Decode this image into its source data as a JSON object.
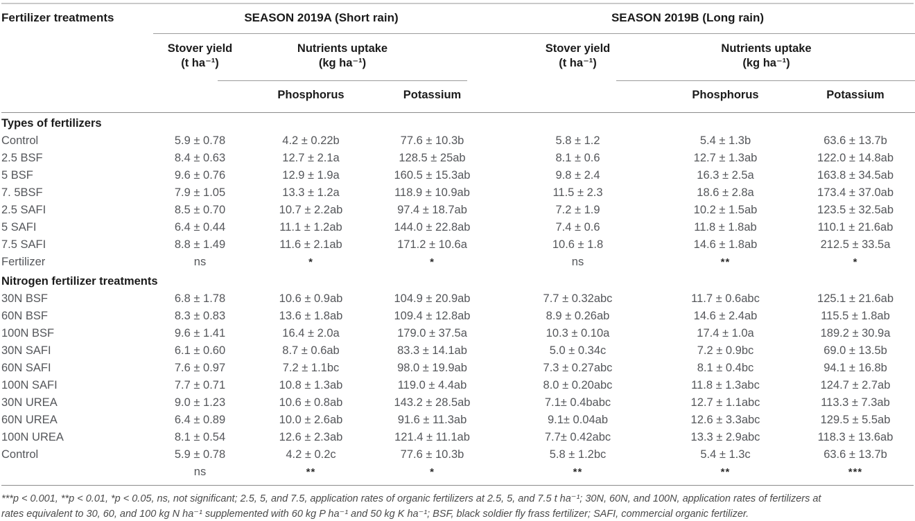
{
  "table": {
    "corner_label": "Fertilizer treatments",
    "header": {
      "seasons": [
        {
          "title": "SEASON 2019A (Short rain)",
          "stover_label": "Stover yield",
          "stover_unit": "(t ha⁻¹)",
          "nutrients_label": "Nutrients uptake",
          "nutrients_unit": "(kg ha⁻¹)",
          "nutrient_cols": [
            "Phosphorus",
            "Potassium"
          ]
        },
        {
          "title": "SEASON 2019B (Long rain)",
          "stover_label": "Stover yield",
          "stover_unit": "(t ha⁻¹)",
          "nutrients_label": "Nutrients uptake",
          "nutrients_unit": "(kg ha⁻¹)",
          "nutrient_cols": [
            "Phosphorus",
            "Potassium"
          ]
        }
      ]
    },
    "sections": [
      {
        "title": "Types of fertilizers",
        "rows": [
          {
            "label": "Control",
            "cells": [
              "5.9 ± 0.78",
              "4.2 ± 0.22b",
              "77.6 ± 10.3b",
              "5.8 ± 1.2",
              "5.4 ± 1.3b",
              "63.6 ± 13.7b"
            ]
          },
          {
            "label": "2.5 BSF",
            "cells": [
              "8.4 ± 0.63",
              "12.7 ± 2.1a",
              "128.5 ± 25ab",
              "8.1 ± 0.6",
              "12.7 ± 1.3ab",
              "122.0 ± 14.8ab"
            ]
          },
          {
            "label": "5 BSF",
            "cells": [
              "9.6 ± 0.76",
              "12.9 ± 1.9a",
              "160.5 ± 15.3ab",
              "9.8 ± 2.4",
              "16.3 ± 2.5a",
              "163.8 ± 34.5ab"
            ]
          },
          {
            "label": "7. 5BSF",
            "cells": [
              "7.9 ± 1.05",
              "13.3 ± 1.2a",
              "118.9 ± 10.9ab",
              "11.5 ± 2.3",
              "18.6 ± 2.8a",
              "173.4 ± 37.0ab"
            ]
          },
          {
            "label": "2.5 SAFI",
            "cells": [
              "8.5 ± 0.70",
              "10.7 ± 2.2ab",
              "97.4 ± 18.7ab",
              "7.2 ± 1.9",
              "10.2 ± 1.5ab",
              "123.5 ± 32.5ab"
            ]
          },
          {
            "label": "5 SAFI",
            "cells": [
              "6.4 ± 0.44",
              "11.1 ± 1.2ab",
              "144.0 ± 22.8ab",
              "7.4 ± 0.6",
              "11.8 ± 1.8ab",
              "110.1 ± 21.6ab"
            ]
          },
          {
            "label": "7.5 SAFI",
            "cells": [
              "8.8 ± 1.49",
              "11.6 ± 2.1ab",
              "171.2 ± 10.6a",
              "10.6 ± 1.8",
              "14.6 ± 1.8ab",
              "212.5 ± 33.5a"
            ]
          },
          {
            "label": "Fertilizer",
            "cells": [
              "ns",
              "*",
              "*",
              "ns",
              "**",
              "*"
            ]
          }
        ]
      },
      {
        "title": "Nitrogen fertilizer treatments",
        "rows": [
          {
            "label": "30N BSF",
            "cells": [
              "6.8 ± 1.78",
              "10.6 ± 0.9ab",
              "104.9 ± 20.9ab",
              "7.7 ± 0.32abc",
              "11.7 ± 0.6abc",
              "125.1 ± 21.6ab"
            ]
          },
          {
            "label": "60N BSF",
            "cells": [
              "8.3 ± 0.83",
              "13.6 ± 1.8ab",
              "109.4 ± 12.8ab",
              "8.9 ± 0.26ab",
              "14.6 ± 2.4ab",
              "115.5 ± 1.8ab"
            ]
          },
          {
            "label": "100N BSF",
            "cells": [
              "9.6 ± 1.41",
              "16.4 ± 2.0a",
              "179.0 ± 37.5a",
              "10.3 ± 0.10a",
              "17.4 ± 1.0a",
              "189.2 ± 30.9a"
            ]
          },
          {
            "label": "30N SAFI",
            "cells": [
              "6.1 ± 0.60",
              "8.7 ± 0.6ab",
              "83.3 ± 14.1ab",
              "5.0 ± 0.34c",
              "7.2 ± 0.9bc",
              "69.0 ± 13.5b"
            ]
          },
          {
            "label": "60N SAFI",
            "cells": [
              "7.6 ± 0.97",
              "7.2 ± 1.1bc",
              "98.0 ± 19.9ab",
              "7.3 ± 0.27abc",
              "8.1 ± 0.4bc",
              "94.1 ± 16.8b"
            ]
          },
          {
            "label": "100N SAFI",
            "cells": [
              "7.7 ± 0.71",
              "10.8 ± 1.3ab",
              "119.0 ± 4.4ab",
              "8.0 ± 0.20abc",
              "11.8 ± 1.3abc",
              "124.7 ± 2.7ab"
            ]
          },
          {
            "label": "30N UREA",
            "cells": [
              "9.0 ± 1.23",
              "10.6 ± 0.8ab",
              "143.2 ± 28.5ab",
              "7.1± 0.4babc",
              "12.7 ± 1.1abc",
              "113.3 ± 7.3ab"
            ]
          },
          {
            "label": "60N UREA",
            "cells": [
              "6.4 ± 0.89",
              "10.0 ± 2.6ab",
              "91.6 ± 11.3ab",
              "9.1± 0.04ab",
              "12.6 ± 3.3abc",
              "129.5 ± 5.5ab"
            ]
          },
          {
            "label": "100N UREA",
            "cells": [
              "8.1 ± 0.54",
              "12.6 ± 2.3ab",
              "121.4 ± 11.1ab",
              "7.7± 0.42abc",
              "13.3 ± 2.9abc",
              "118.3 ± 13.6ab"
            ]
          },
          {
            "label": "Control",
            "cells": [
              "5.9 ± 0.78",
              "4.2 ± 0.2c",
              "77.6 ± 10.3b",
              "5.8 ± 1.2bc",
              "5.4 ± 1.3c",
              "63.6 ± 13.7b"
            ]
          },
          {
            "label": "",
            "cells": [
              "ns",
              "**",
              "*",
              "**",
              "**",
              "***"
            ]
          }
        ]
      }
    ],
    "footnote": {
      "line1": "***p < 0.001, **p < 0.01, *p < 0.05, ns, not significant; 2.5, 5, and 7.5, application rates of organic fertilizers at 2.5, 5, and 7.5 t ha⁻¹; 30N, 60N, and 100N, application rates of fertilizers at",
      "line2": "rates equivalent to 30, 60, and 100 kg N ha⁻¹ supplemented with 60 kg P ha⁻¹ and 50 kg K ha⁻¹; BSF, black soldier fly frass fertilizer; SAFI, commercial organic fertilizer."
    }
  }
}
